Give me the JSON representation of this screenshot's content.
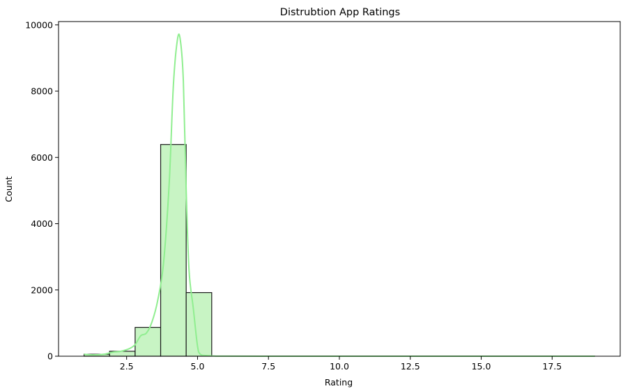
{
  "chart_data": {
    "type": "bar",
    "subtype": "histogram_with_kde",
    "title": "Distrubtion App Ratings",
    "xlabel": "Rating",
    "ylabel": "Count",
    "xlim": [
      0.1,
      19.9
    ],
    "ylim": [
      0,
      10100
    ],
    "xticks": [
      2.5,
      5.0,
      7.5,
      10.0,
      12.5,
      15.0,
      17.5
    ],
    "xtick_labels": [
      "2.5",
      "5.0",
      "7.5",
      "10.0",
      "12.5",
      "15.0",
      "17.5"
    ],
    "yticks": [
      0,
      2000,
      4000,
      6000,
      8000,
      10000
    ],
    "ytick_labels": [
      "0",
      "2000",
      "4000",
      "6000",
      "8000",
      "10000"
    ],
    "grid": false,
    "colors": {
      "bar_fill": "#c8f4c4",
      "bar_edge": "#1a1a1a",
      "kde_line": "#90ee90"
    },
    "bins": [
      {
        "x0": 1.0,
        "x1": 1.9,
        "count": 60
      },
      {
        "x0": 1.9,
        "x1": 2.8,
        "count": 150
      },
      {
        "x0": 2.8,
        "x1": 3.7,
        "count": 870
      },
      {
        "x0": 3.7,
        "x1": 4.6,
        "count": 6390
      },
      {
        "x0": 4.6,
        "x1": 5.5,
        "count": 1920
      },
      {
        "x0": 5.5,
        "x1": 6.4,
        "count": 0
      },
      {
        "x0": 6.4,
        "x1": 7.3,
        "count": 0
      },
      {
        "x0": 7.3,
        "x1": 8.2,
        "count": 0
      },
      {
        "x0": 8.2,
        "x1": 9.1,
        "count": 0
      },
      {
        "x0": 9.1,
        "x1": 10.0,
        "count": 0
      },
      {
        "x0": 10.0,
        "x1": 10.9,
        "count": 0
      },
      {
        "x0": 10.9,
        "x1": 11.8,
        "count": 0
      },
      {
        "x0": 11.8,
        "x1": 12.7,
        "count": 0
      },
      {
        "x0": 12.7,
        "x1": 13.6,
        "count": 0
      },
      {
        "x0": 13.6,
        "x1": 14.5,
        "count": 0
      },
      {
        "x0": 14.5,
        "x1": 15.4,
        "count": 0
      },
      {
        "x0": 15.4,
        "x1": 16.3,
        "count": 0
      },
      {
        "x0": 16.3,
        "x1": 17.2,
        "count": 0
      },
      {
        "x0": 17.2,
        "x1": 18.1,
        "count": 0
      },
      {
        "x0": 18.1,
        "x1": 19.0,
        "count": 1
      }
    ],
    "kde": {
      "x": [
        1.0,
        1.3,
        1.7,
        2.0,
        2.3,
        2.6,
        2.8,
        3.0,
        3.2,
        3.4,
        3.6,
        3.8,
        4.0,
        4.15,
        4.3,
        4.4,
        4.5,
        4.6,
        4.7,
        4.85,
        5.0,
        5.1,
        5.3,
        5.6,
        6.0,
        8.0,
        10.0,
        12.0,
        15.0,
        17.5,
        19.0
      ],
      "y": [
        60,
        40,
        60,
        120,
        150,
        230,
        350,
        620,
        700,
        1050,
        1700,
        2800,
        5200,
        8200,
        9600,
        9500,
        8300,
        5000,
        2600,
        1450,
        300,
        60,
        20,
        5,
        2,
        1,
        1,
        1,
        1,
        1,
        1
      ]
    }
  }
}
